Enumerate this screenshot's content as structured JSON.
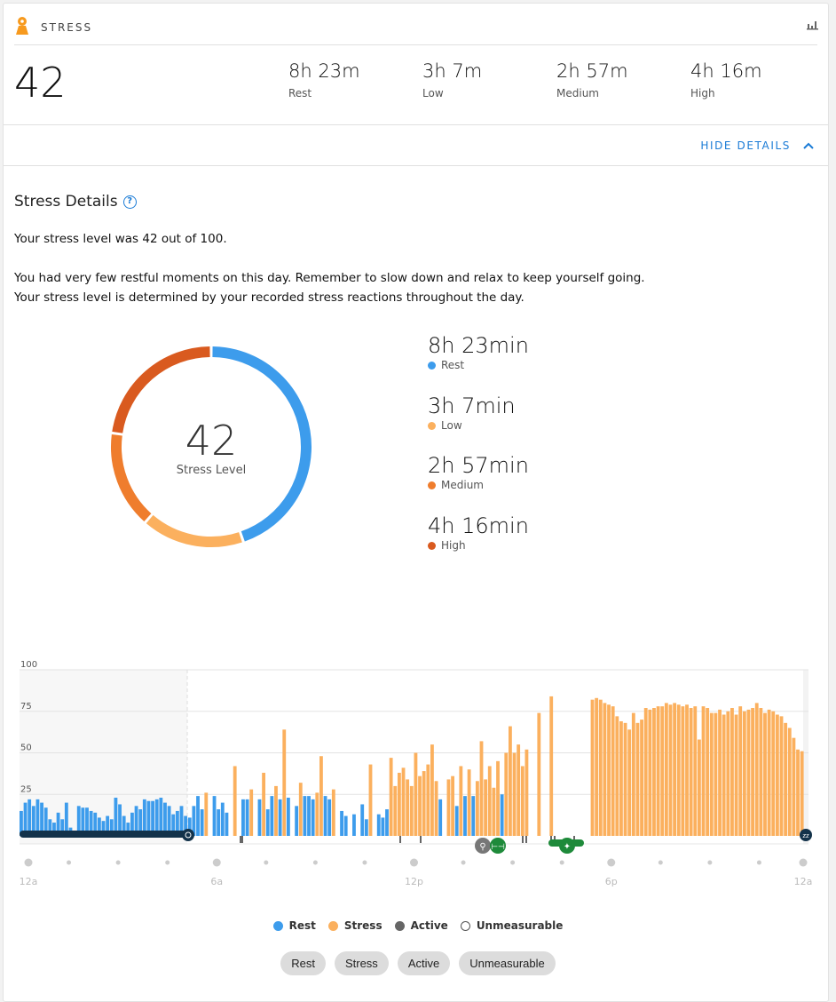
{
  "header": {
    "title": "STRESS",
    "icon": "person-stress-icon",
    "chart_icon": "bar-chart-icon"
  },
  "summary": {
    "score": "42",
    "items": [
      {
        "value": "8h 23m",
        "label": "Rest"
      },
      {
        "value": "3h 7m",
        "label": "Low"
      },
      {
        "value": "2h 57m",
        "label": "Medium"
      },
      {
        "value": "4h 16m",
        "label": "High"
      }
    ]
  },
  "toggle": {
    "label": "HIDE DETAILS"
  },
  "details": {
    "title": "Stress Details",
    "line1": "Your stress level was 42 out of 100.",
    "line2": "You had very few restful moments on this day. Remember to slow down and relax to keep yourself going. Your stress level is determined by your recorded stress reactions throughout the day.",
    "donut_value": "42",
    "donut_label": "Stress Level",
    "legend": [
      {
        "value": "8h 23min",
        "label": "Rest",
        "minutes": 503,
        "color": "#3d9cec"
      },
      {
        "value": "3h 7min",
        "label": "Low",
        "minutes": 187,
        "color": "#fbb05e"
      },
      {
        "value": "2h 57min",
        "label": "Medium",
        "minutes": 177,
        "color": "#ef7d2d"
      },
      {
        "value": "4h 16min",
        "label": "High",
        "minutes": 256,
        "color": "#d95a1f"
      }
    ]
  },
  "chart_data": {
    "type": "bar",
    "ylim": [
      0,
      100
    ],
    "yticks": [
      "25",
      "50",
      "75",
      "100"
    ],
    "xticks": [
      "12a",
      "6a",
      "12p",
      "6p",
      "12a"
    ],
    "interval_minutes": 7.5,
    "rest_threshold": 25,
    "colors": {
      "rest": "#3d9cec",
      "stress": "#fbb05e",
      "active": "#666666",
      "sleep": "#13324a"
    },
    "values": [
      15,
      20,
      22,
      18,
      22,
      20,
      17,
      10,
      8,
      14,
      10,
      20,
      5,
      3,
      18,
      17,
      17,
      15,
      14,
      11,
      9,
      12,
      10,
      23,
      19,
      12,
      8,
      14,
      18,
      16,
      22,
      21,
      21,
      22,
      23,
      20,
      18,
      13,
      15,
      18,
      12,
      11,
      18,
      24,
      16,
      26,
      null,
      24,
      16,
      20,
      14,
      null,
      42,
      null,
      22,
      22,
      28,
      null,
      22,
      38,
      16,
      24,
      30,
      22,
      64,
      23,
      null,
      18,
      32,
      24,
      24,
      22,
      26,
      48,
      24,
      22,
      28,
      null,
      15,
      12,
      null,
      13,
      null,
      19,
      10,
      43,
      null,
      13,
      11,
      16,
      47,
      30,
      38,
      41,
      34,
      30,
      50,
      36,
      39,
      43,
      55,
      33,
      22,
      null,
      34,
      36,
      18,
      42,
      24,
      40,
      24,
      33,
      57,
      34,
      42,
      29,
      45,
      25,
      50,
      66,
      50,
      55,
      42,
      52,
      null,
      null,
      74,
      null,
      null,
      84,
      null,
      null,
      null,
      null,
      null,
      null,
      null,
      null,
      null,
      82,
      83,
      82,
      80,
      79,
      78,
      72,
      69,
      68,
      64,
      74,
      68,
      70,
      77,
      76,
      77,
      78,
      78,
      80,
      79,
      80,
      79,
      78,
      79,
      77,
      78,
      58,
      78,
      77,
      74,
      74,
      76,
      73,
      75,
      77,
      73,
      78,
      75,
      76,
      77,
      80,
      77,
      74,
      76,
      75,
      73,
      72,
      68,
      65,
      59,
      52,
      51,
      null
    ]
  },
  "chart_legend": [
    {
      "label": "Rest",
      "color": "#3d9cec"
    },
    {
      "label": "Stress",
      "color": "#fbb05e"
    },
    {
      "label": "Active",
      "color": "#666666"
    },
    {
      "label": "Unmeasurable",
      "color": "#ffffff"
    }
  ],
  "filters": [
    "Rest",
    "Stress",
    "Active",
    "Unmeasurable"
  ]
}
